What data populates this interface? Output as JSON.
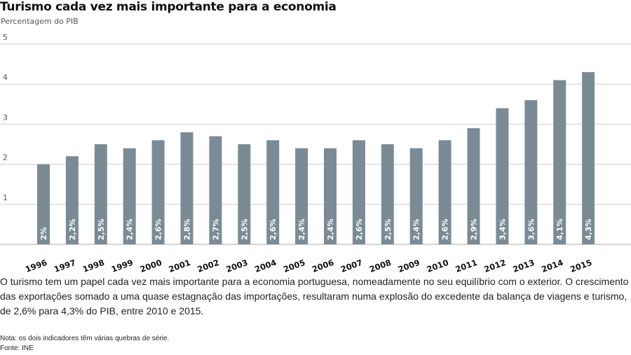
{
  "chart_data": {
    "type": "bar",
    "title": "Turismo cada vez mais importante para a economia",
    "subtitle": "Percentagem do PIB",
    "xlabel": "",
    "ylabel": "",
    "ylim": [
      0,
      5
    ],
    "yticks": [
      1,
      2,
      3,
      4,
      5
    ],
    "grid": true,
    "bar_color": "#7b8b95",
    "categories": [
      "1996",
      "1997",
      "1998",
      "1999",
      "2000",
      "2001",
      "2002",
      "2003",
      "2004",
      "2005",
      "2006",
      "2007",
      "2008",
      "2009",
      "2010",
      "2011",
      "2012",
      "2013",
      "2014",
      "2015"
    ],
    "values": [
      2,
      2.2,
      2.5,
      2.4,
      2.6,
      2.8,
      2.7,
      2.5,
      2.6,
      2.4,
      2.4,
      2.6,
      2.5,
      2.4,
      2.6,
      2.9,
      3.4,
      3.6,
      4.1,
      4.3
    ],
    "data_labels": [
      "2%",
      "2,2%",
      "2,5%",
      "2,4%",
      "2,6%",
      "2,8%",
      "2,7%",
      "2,5%",
      "2,6%",
      "2,4%",
      "2,4%",
      "2,6%",
      "2,5%",
      "2,4%",
      "2,6%",
      "2,9%",
      "3,4%",
      "3,6%",
      "4,1%",
      "4,3%"
    ]
  },
  "body_text": "O turismo tem um papel cada vez mais importante para a economia portuguesa, nomeadamente no seu equilíbrio com o exterior. O crescimento das exportações somado a uma quase estagnação das importações, resultaram numa explosão do excedente da balança de viagens e turismo, de 2,6% para 4,3% do PIB, entre 2010 e 2015.",
  "note": "Nota: os dois indicadores têm várias quebras de série.",
  "source": "Fonte: INE"
}
